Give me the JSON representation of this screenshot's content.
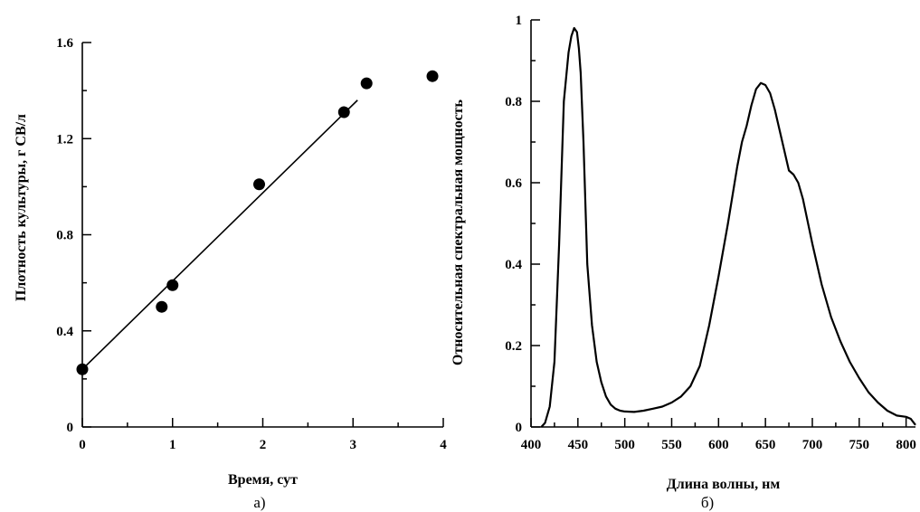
{
  "chart_data": [
    {
      "type": "scatter",
      "panel_label": "а)",
      "xlabel": "Время, сут",
      "ylabel": "Плотность культуры, г СВ/л",
      "xlim": [
        0,
        4
      ],
      "ylim": [
        0,
        1.6
      ],
      "x_ticks": [
        0,
        1,
        2,
        3,
        4
      ],
      "x_tick_labels": [
        "0",
        "1",
        "2",
        "3",
        "4"
      ],
      "y_ticks": [
        0,
        0.4,
        0.8,
        1.2,
        1.6
      ],
      "y_tick_labels": [
        "0",
        "0.4",
        "0.8",
        "1.2",
        "1.6"
      ],
      "grid": false,
      "points": {
        "x": [
          0,
          0.88,
          1.0,
          1.96,
          2.9,
          3.15,
          3.88
        ],
        "y": [
          0.24,
          0.5,
          0.59,
          1.01,
          1.31,
          1.43,
          1.46
        ]
      },
      "fit_line": {
        "x": [
          0,
          3.05
        ],
        "y": [
          0.24,
          1.36
        ]
      }
    },
    {
      "type": "line",
      "panel_label": "б)",
      "xlabel": "Длина волны, нм",
      "ylabel": "Относительная спектральная мощность",
      "xlim": [
        400,
        810
      ],
      "ylim": [
        0,
        1
      ],
      "x_ticks": [
        400,
        450,
        500,
        550,
        600,
        650,
        700,
        750,
        800
      ],
      "x_tick_labels": [
        "400",
        "450",
        "500",
        "550",
        "600",
        "650",
        "700",
        "750",
        "800"
      ],
      "y_ticks": [
        0,
        0.2,
        0.4,
        0.6,
        0.8,
        1
      ],
      "y_tick_labels": [
        "0",
        "0.2",
        "0.4",
        "0.6",
        "0.8",
        "1"
      ],
      "grid": false,
      "series": [
        {
          "x": [
            411,
            415,
            420,
            425,
            430,
            435,
            440,
            443,
            446,
            449,
            451,
            453,
            456,
            460,
            465,
            470,
            475,
            480,
            485,
            490,
            495,
            500,
            510,
            520,
            530,
            540,
            550,
            560,
            570,
            580,
            590,
            600,
            610,
            620,
            625,
            630,
            635,
            640,
            645,
            650,
            655,
            660,
            665,
            670,
            675,
            680,
            685,
            690,
            700,
            710,
            720,
            730,
            740,
            750,
            760,
            770,
            780,
            790,
            800,
            805,
            810
          ],
          "y": [
            0,
            0.01,
            0.05,
            0.16,
            0.45,
            0.8,
            0.92,
            0.96,
            0.98,
            0.97,
            0.93,
            0.87,
            0.7,
            0.4,
            0.25,
            0.16,
            0.11,
            0.075,
            0.055,
            0.045,
            0.04,
            0.038,
            0.037,
            0.04,
            0.045,
            0.05,
            0.06,
            0.075,
            0.1,
            0.15,
            0.25,
            0.37,
            0.5,
            0.64,
            0.7,
            0.74,
            0.79,
            0.83,
            0.845,
            0.84,
            0.82,
            0.78,
            0.73,
            0.68,
            0.63,
            0.62,
            0.6,
            0.56,
            0.45,
            0.35,
            0.27,
            0.21,
            0.16,
            0.12,
            0.085,
            0.06,
            0.04,
            0.028,
            0.025,
            0.02,
            0.005
          ]
        }
      ]
    }
  ]
}
